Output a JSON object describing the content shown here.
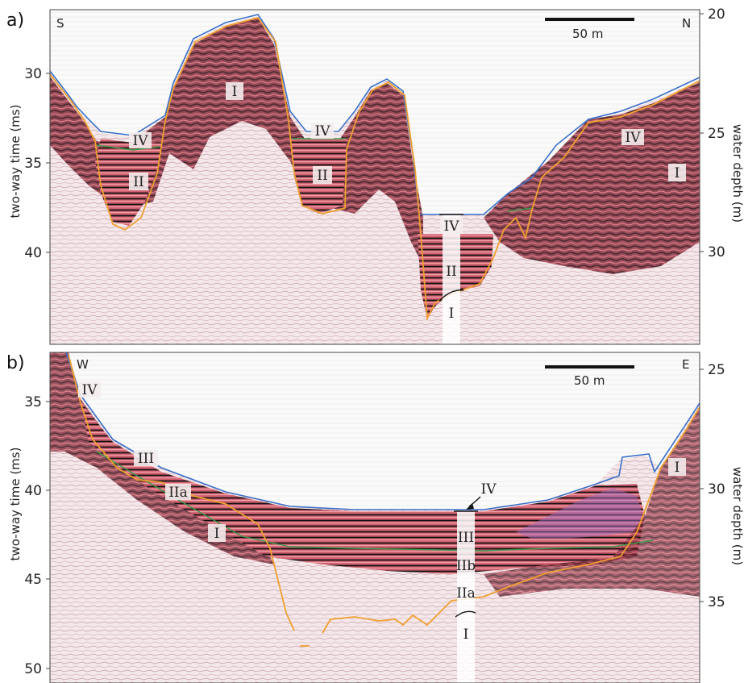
{
  "panel_a": {
    "label": "a)",
    "left_corner": "S",
    "right_corner": "N",
    "scale_label": "50 m",
    "y_axis_title": "two-way time (ms)",
    "right_axis_title": "water depth (m)",
    "y_ticks": [
      "30",
      "35",
      "40"
    ],
    "right_ticks": [
      "20",
      "25",
      "30"
    ],
    "unit_labels": [
      "I",
      "II",
      "IV",
      "IV",
      "II",
      "IV",
      "IV",
      "II",
      "I",
      "I"
    ]
  },
  "panel_b": {
    "label": "b)",
    "left_corner": "W",
    "right_corner": "E",
    "scale_label": "50 m",
    "y_axis_title": "two-way time (ms)",
    "right_axis_title": "water depth (m)",
    "y_ticks": [
      "35",
      "40",
      "45",
      "50"
    ],
    "right_ticks": [
      "25",
      "30",
      "35"
    ],
    "unit_labels": [
      "IV",
      "III",
      "IIa",
      "I",
      "IV",
      "III",
      "IIb",
      "IIa",
      "I",
      "I"
    ]
  },
  "colors": {
    "seafloor": "#3a6fc9",
    "unit_boundary": "#f0a030",
    "green_horizon": "#3a9a4a",
    "reflector": "#b84050",
    "gas_patch": "#a070c0"
  }
}
